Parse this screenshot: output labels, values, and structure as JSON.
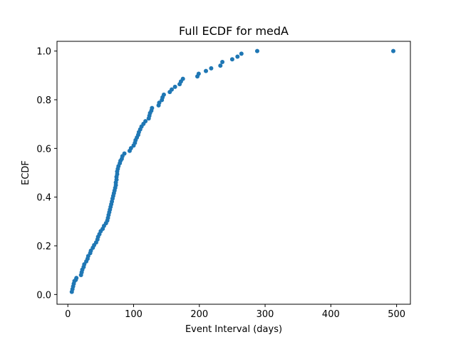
{
  "chart_data": {
    "type": "scatter",
    "title": "Full ECDF for medA",
    "xlabel": "Event Interval (days)",
    "ylabel": "ECDF",
    "xlim": [
      -16.5,
      521
    ],
    "ylim": [
      -0.04,
      1.04
    ],
    "xticks": [
      0,
      100,
      200,
      300,
      400,
      500
    ],
    "yticks": [
      0.0,
      0.2,
      0.4,
      0.6,
      0.8,
      1.0
    ],
    "xtick_labels": [
      "0",
      "100",
      "200",
      "300",
      "400",
      "500"
    ],
    "ytick_labels": [
      "0.0",
      "0.2",
      "0.4",
      "0.6",
      "0.8",
      "1.0"
    ],
    "grid": false,
    "marker_color": "#1f77b4",
    "series": [
      {
        "x": [
          6,
          7,
          8,
          9,
          10,
          12,
          13,
          20,
          21,
          22,
          24,
          25,
          28,
          30,
          31,
          34,
          35,
          38,
          40,
          43,
          45,
          46,
          48,
          50,
          53,
          55,
          58,
          60,
          61,
          62,
          63,
          64,
          65,
          66,
          67,
          68,
          69,
          70,
          71,
          72,
          73,
          73,
          74,
          74,
          75,
          75,
          76,
          77,
          79,
          80,
          82,
          83,
          86,
          94,
          96,
          100,
          102,
          103,
          105,
          107,
          108,
          110,
          112,
          115,
          118,
          123,
          124,
          125,
          127,
          128,
          138,
          139,
          143,
          144,
          146,
          155,
          158,
          163,
          170,
          172,
          175,
          197,
          199,
          210,
          218,
          232,
          235,
          250,
          258,
          264,
          288,
          495
        ],
        "y": [
          0.011,
          0.022,
          0.033,
          0.044,
          0.055,
          0.06,
          0.068,
          0.08,
          0.091,
          0.102,
          0.113,
          0.124,
          0.136,
          0.147,
          0.158,
          0.17,
          0.18,
          0.192,
          0.203,
          0.214,
          0.226,
          0.237,
          0.248,
          0.26,
          0.27,
          0.282,
          0.293,
          0.304,
          0.315,
          0.327,
          0.338,
          0.349,
          0.36,
          0.371,
          0.382,
          0.394,
          0.405,
          0.416,
          0.427,
          0.438,
          0.449,
          0.46,
          0.472,
          0.483,
          0.494,
          0.505,
          0.516,
          0.527,
          0.539,
          0.549,
          0.557,
          0.568,
          0.579,
          0.59,
          0.601,
          0.612,
          0.623,
          0.634,
          0.645,
          0.656,
          0.667,
          0.678,
          0.69,
          0.701,
          0.712,
          0.723,
          0.734,
          0.745,
          0.755,
          0.766,
          0.777,
          0.788,
          0.799,
          0.81,
          0.821,
          0.832,
          0.842,
          0.853,
          0.864,
          0.875,
          0.886,
          0.896,
          0.907,
          0.918,
          0.929,
          0.94,
          0.955,
          0.966,
          0.977,
          0.989,
          1.0,
          1.0
        ]
      }
    ]
  }
}
